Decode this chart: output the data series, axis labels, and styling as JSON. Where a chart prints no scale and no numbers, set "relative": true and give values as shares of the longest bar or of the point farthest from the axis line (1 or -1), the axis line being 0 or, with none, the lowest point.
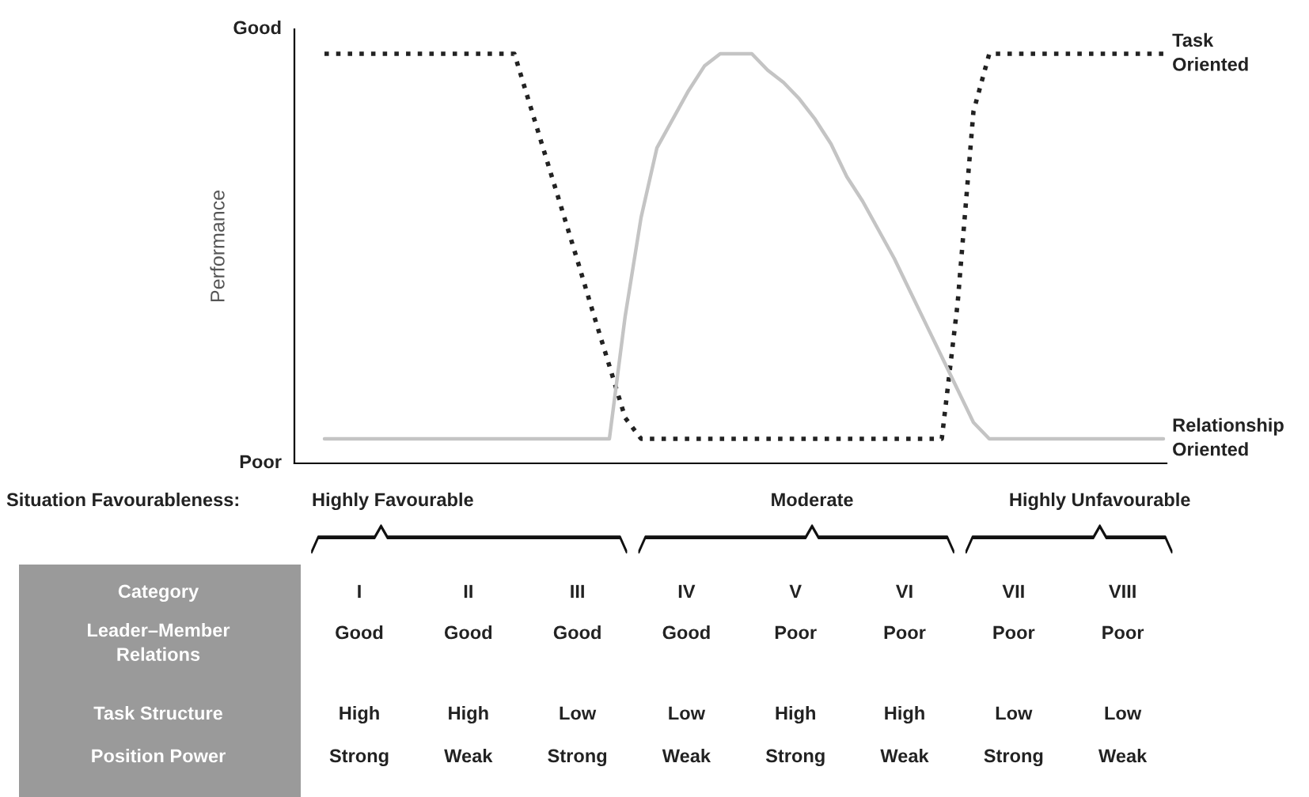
{
  "chart_data": {
    "type": "line",
    "ylabel": "Performance",
    "relative": true,
    "categories": [
      null,
      null,
      null,
      null,
      null,
      null,
      null,
      null,
      null,
      null,
      null,
      null,
      null,
      null,
      null,
      null,
      null,
      null,
      null,
      null,
      null,
      null,
      null,
      null,
      null,
      null,
      null,
      null,
      null,
      null,
      null,
      null,
      null,
      null,
      null,
      null,
      null,
      null,
      null,
      null,
      null,
      null,
      null,
      null,
      null,
      null,
      null,
      null,
      null,
      null,
      null,
      null,
      null,
      null
    ],
    "series": [
      {
        "name": "Task Oriented",
        "color": "#222222",
        "line_style": "dotted",
        "values": [
          1,
          1,
          1,
          1,
          1,
          1,
          1,
          1,
          1,
          1,
          1,
          1,
          1,
          0.873,
          0.746,
          0.62,
          0.493,
          0.364,
          0.238,
          0.111,
          0.06,
          0.06,
          0.06,
          0.06,
          0.06,
          0.06,
          0.06,
          0.06,
          0.06,
          0.06,
          0.06,
          0.06,
          0.06,
          0.06,
          0.06,
          0.06,
          0.06,
          0.06,
          0.06,
          0.06,
          0.39,
          0.859,
          1,
          1,
          1,
          1,
          1,
          1,
          1,
          1,
          1,
          1,
          1,
          1
        ]
      },
      {
        "name": "Relationship Oriented",
        "color": "#c4c4c4",
        "line_style": "solid",
        "values": [
          0.06,
          0.06,
          0.06,
          0.06,
          0.06,
          0.06,
          0.06,
          0.06,
          0.06,
          0.06,
          0.06,
          0.06,
          0.06,
          0.06,
          0.06,
          0.06,
          0.06,
          0.06,
          0.06,
          0.36,
          0.6,
          0.77,
          0.84,
          0.91,
          0.97,
          1,
          1,
          1,
          0.96,
          0.93,
          0.89,
          0.84,
          0.78,
          0.7,
          0.64,
          0.57,
          0.5,
          0.42,
          0.34,
          0.26,
          0.18,
          0.1,
          0.06,
          0.06,
          0.06,
          0.06,
          0.06,
          0.06,
          0.06,
          0.06,
          0.06,
          0.06,
          0.06,
          0.06
        ]
      }
    ],
    "grid": false,
    "legend": false,
    "annotations": [
      "Good",
      "Poor",
      "Situation Favourableness:",
      "Highly Favourable",
      "Moderate",
      "Highly Unfavourable",
      "Category",
      "I",
      "II",
      "III",
      "IV",
      "V",
      "VI",
      "VII",
      "VIII",
      "Leader–Member\nRelations",
      "Good",
      "Good",
      "Good",
      "Good",
      "Poor",
      "Poor",
      "Poor",
      "Poor",
      "Task Structure",
      "High",
      "High",
      "Low",
      "Low",
      "High",
      "High",
      "Low",
      "Low",
      "Position Power",
      "Strong",
      "Weak",
      "Strong",
      "Weak",
      "Strong",
      "Weak",
      "Strong",
      "Weak"
    ]
  }
}
